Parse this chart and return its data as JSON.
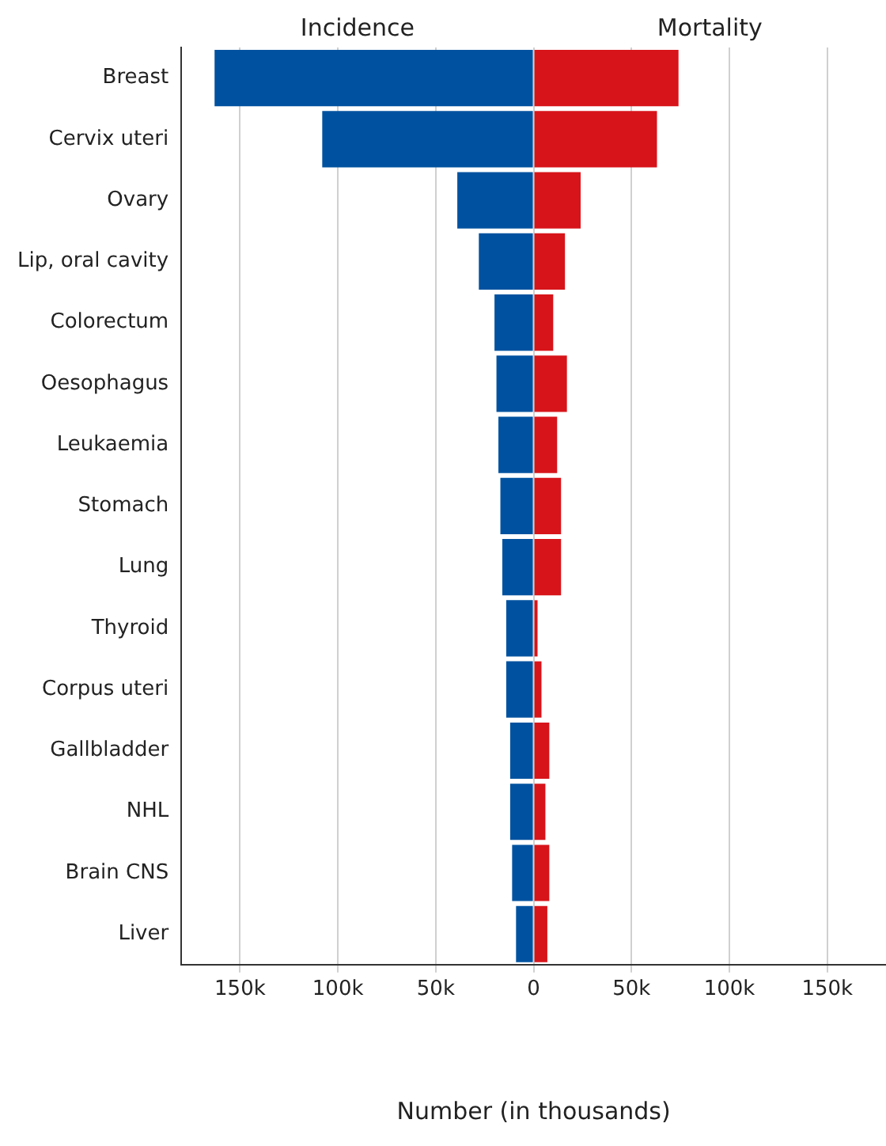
{
  "chart_data": {
    "type": "bar",
    "orientation": "horizontal",
    "stacked": true,
    "categories": [
      "Breast",
      "Cervix uteri",
      "Ovary",
      "Lip, oral cavity",
      "Colorectum",
      "Oesophagus",
      "Leukaemia",
      "Stomach",
      "Lung",
      "Thyroid",
      "Corpus uteri",
      "Gallbladder",
      "NHL",
      "Brain CNS",
      "Liver"
    ],
    "series": [
      {
        "name": "Incidence",
        "color": "#0052a0",
        "values": [
          -163000,
          -108000,
          -39000,
          -28000,
          -20000,
          -19000,
          -18000,
          -17000,
          -16000,
          -14000,
          -14000,
          -12000,
          -12000,
          -11000,
          -9000
        ]
      },
      {
        "name": "Mortality",
        "color": "#d7141a",
        "values": [
          74000,
          63000,
          24000,
          16000,
          10000,
          17000,
          12000,
          14000,
          14000,
          2000,
          4000,
          8000,
          6000,
          8000,
          7000
        ]
      }
    ],
    "xlabel": "Number (in thousands)",
    "xlim": [
      -180000,
      180000
    ],
    "xticks": [
      {
        "value": -150000,
        "label": "150k"
      },
      {
        "value": -100000,
        "label": "100k"
      },
      {
        "value": -50000,
        "label": "50k"
      },
      0,
      {
        "value": 50000,
        "label": "50k"
      },
      {
        "value": 100000,
        "label": "100k"
      },
      {
        "value": 150000,
        "label": "150k"
      }
    ],
    "grid": "x"
  }
}
